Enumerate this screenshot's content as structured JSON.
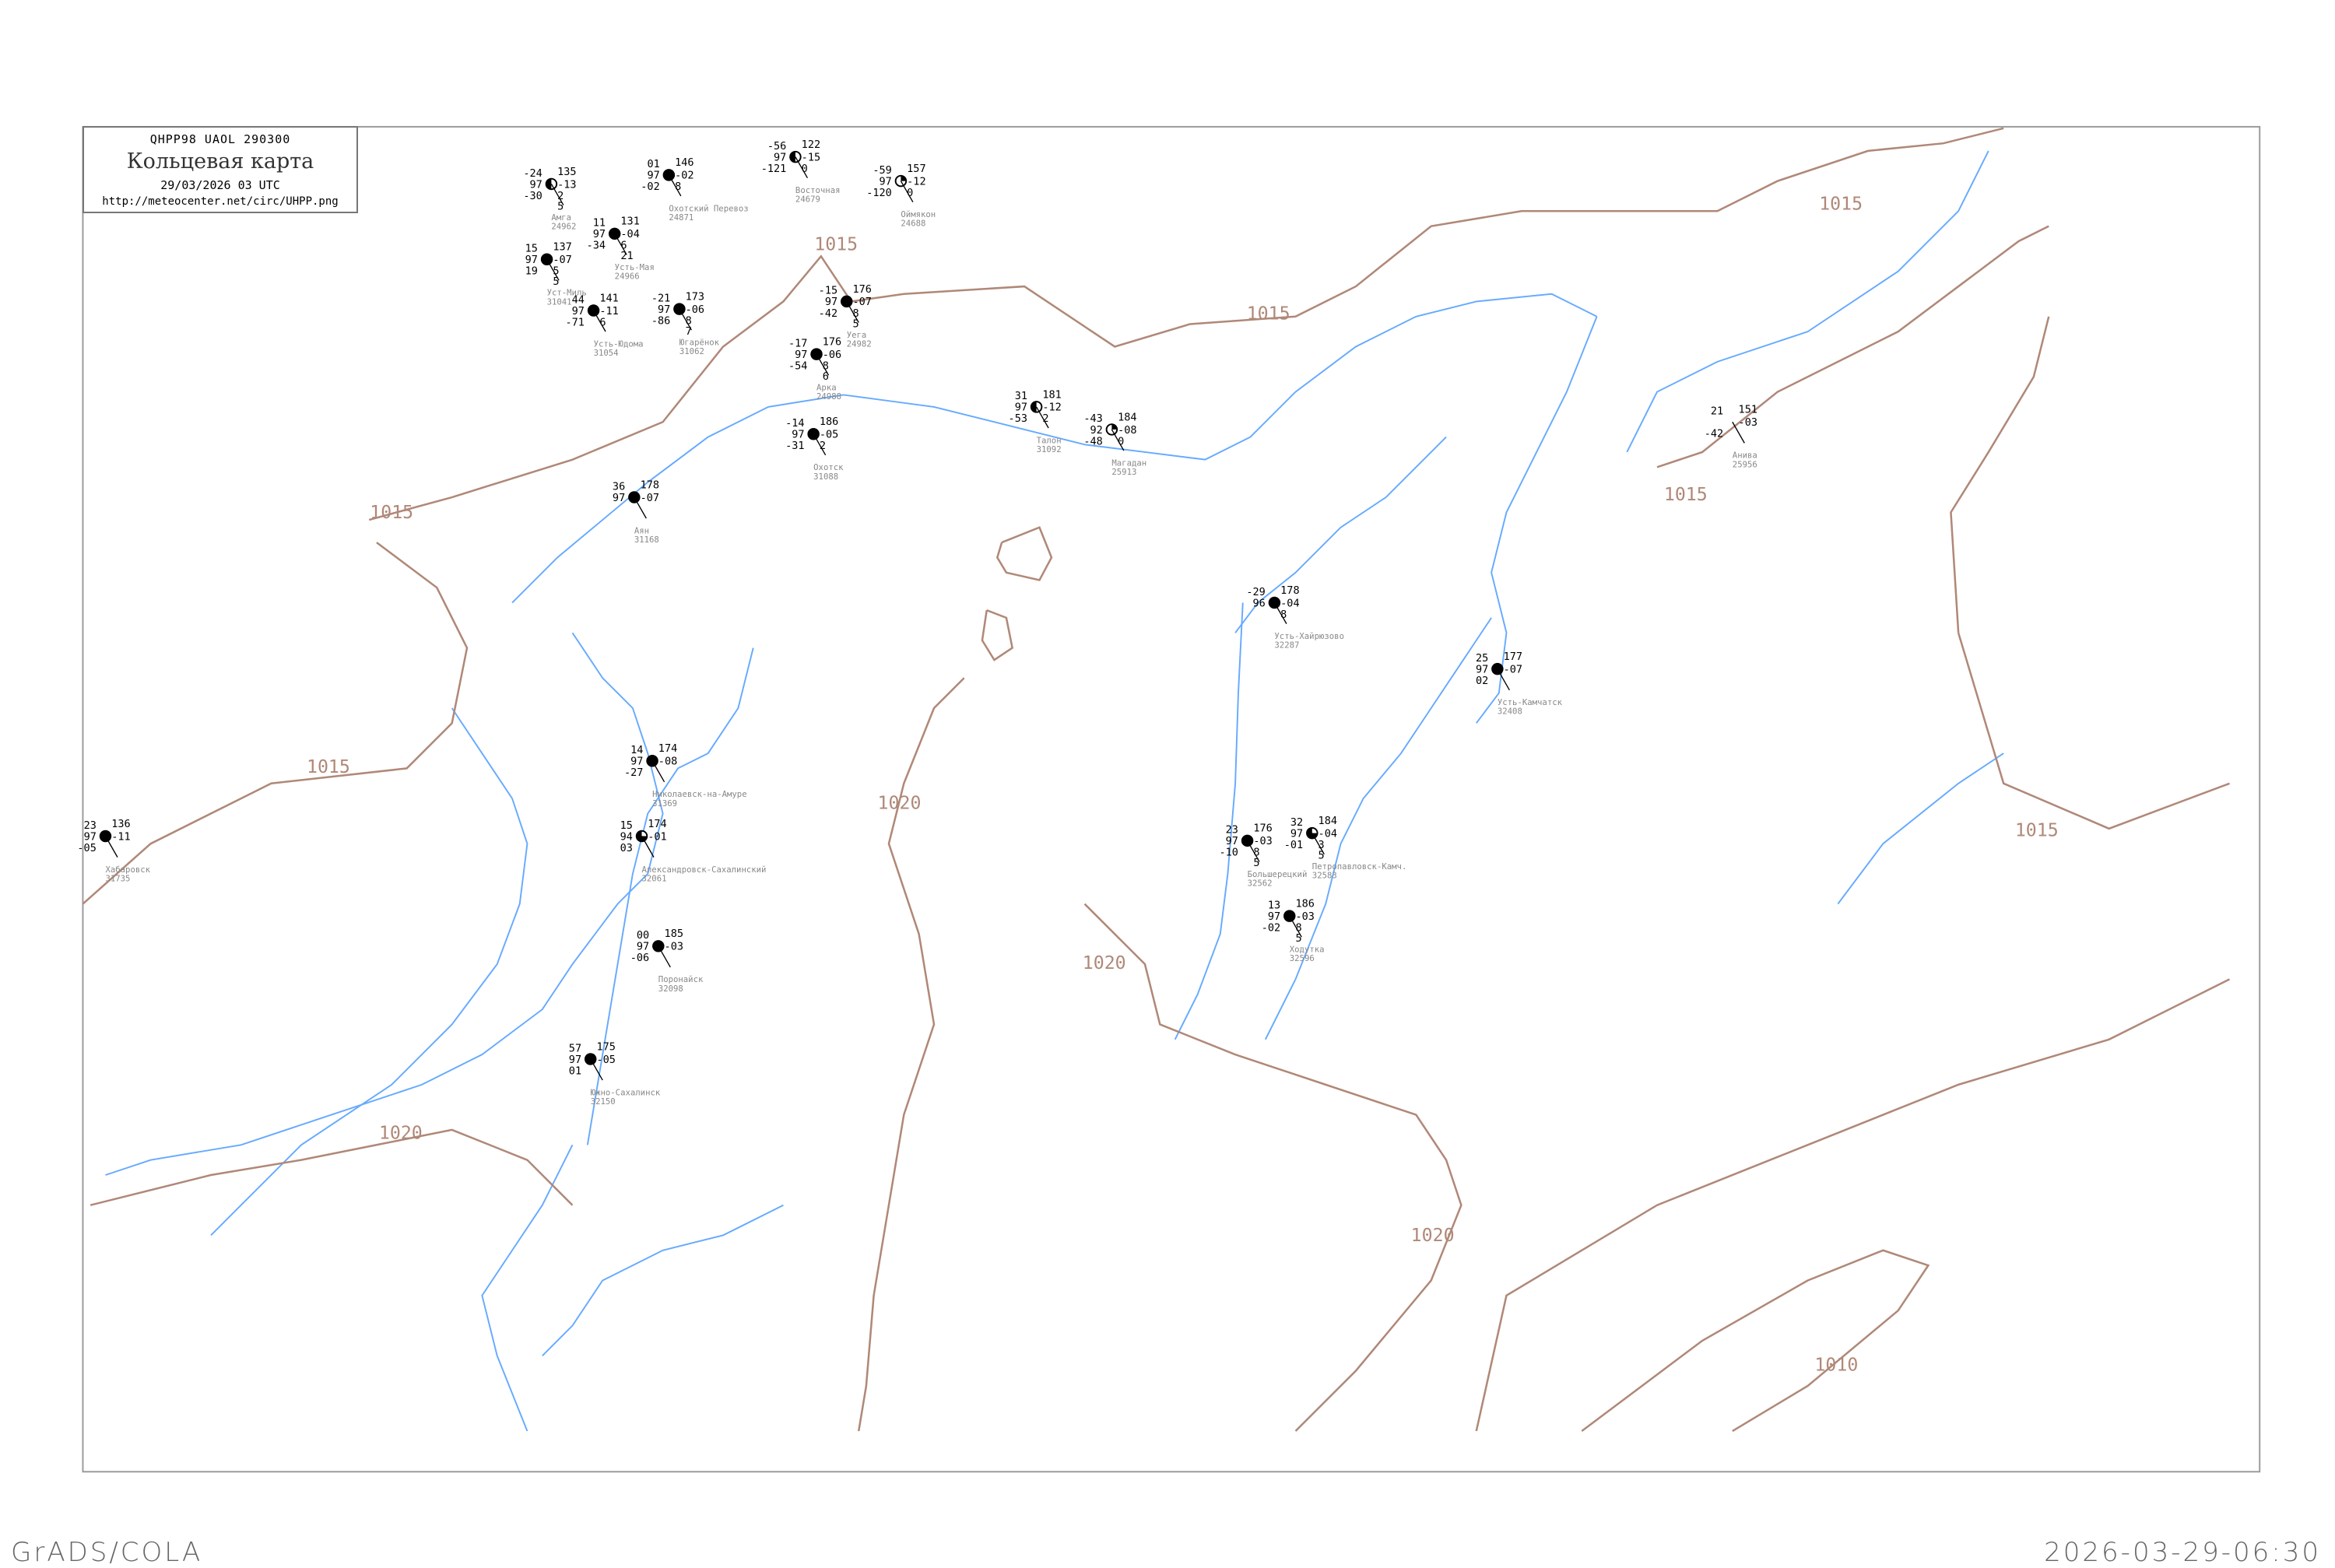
{
  "header": {
    "code_line": "QHPP98  UAOL  290300",
    "title": "Кольцевая карта",
    "datetime": "29/03/2026 03 UTC",
    "url": "http://meteocenter.net/circ/UHPP.png"
  },
  "footer": {
    "left": "GrADS/COLA",
    "right": "2026-03-29-06:30"
  },
  "colors": {
    "isobar": "#b08878",
    "coastline": "#66aaff",
    "station_name": "#888888",
    "frame": "#999999"
  },
  "isobar_labels": [
    "1015",
    "1015",
    "1015",
    "1015",
    "1015",
    "1015",
    "1015",
    "1020",
    "1020",
    "1020",
    "1020",
    "1010"
  ],
  "stations": [
    {
      "name": "Амга",
      "id": "24962",
      "t": "-24",
      "p": "97",
      "td": "-30",
      "ppp": "135",
      "tend": "-13",
      "a": "2",
      "b": "5",
      "cover": "half"
    },
    {
      "name": "Охотский Перевоз",
      "id": "24871",
      "t": "01",
      "p": "97",
      "td": "-02",
      "ppp": "146",
      "tend": "-02",
      "a": "8",
      "b": "",
      "cover": "full"
    },
    {
      "name": "Восточная",
      "id": "24679",
      "t": "-56",
      "p": "97",
      "td": "-121",
      "ppp": "122",
      "tend": "-15",
      "a": "0",
      "b": "",
      "cover": "half"
    },
    {
      "name": "Оймякон",
      "id": "24688",
      "t": "-59",
      "p": "97",
      "td": "-120",
      "ppp": "157",
      "tend": "-12",
      "a": "0",
      "b": "",
      "cover": "quarter"
    },
    {
      "name": "Усть-Мая",
      "id": "24966",
      "t": "11",
      "p": "97",
      "td": "-34",
      "ppp": "131",
      "tend": "-04",
      "a": "6",
      "b": "21",
      "cover": "full"
    },
    {
      "name": "Уст-Миль",
      "id": "31041",
      "t": "15",
      "p": "97",
      "td": "19",
      "ppp": "137",
      "tend": "-07",
      "a": "5",
      "b": "5",
      "cover": "full"
    },
    {
      "name": "Усть-Юдома",
      "id": "31054",
      "t": "44",
      "p": "97",
      "td": "-71",
      "ppp": "141",
      "tend": "-11",
      "a": "6",
      "b": "",
      "cover": "full"
    },
    {
      "name": "Югарёнок",
      "id": "31062",
      "t": "-21",
      "p": "97",
      "td": "-86",
      "ppp": "173",
      "tend": "-06",
      "a": "8",
      "b": "7",
      "cover": "full"
    },
    {
      "name": "Уега",
      "id": "24982",
      "t": "-15",
      "p": "97",
      "td": "-42",
      "ppp": "176",
      "tend": "-07",
      "a": "8",
      "b": "5",
      "cover": "full"
    },
    {
      "name": "Арка",
      "id": "24988",
      "t": "-17",
      "p": "97",
      "td": "-54",
      "ppp": "176",
      "tend": "-06",
      "a": "8",
      "b": "6",
      "cover": "full"
    },
    {
      "name": "Охотск",
      "id": "31088",
      "t": "-14",
      "p": "97",
      "td": "-31",
      "ppp": "186",
      "tend": "-05",
      "a": "2",
      "b": "",
      "cover": "full"
    },
    {
      "name": "Талон",
      "id": "31092",
      "t": "31",
      "p": "97",
      "td": "-53",
      "ppp": "181",
      "tend": "-12",
      "a": "2",
      "b": "",
      "cover": "half"
    },
    {
      "name": "Магадан",
      "id": "25913",
      "t": "-43",
      "p": "92",
      "td": "-48",
      "ppp": "184",
      "tend": "-08",
      "a": "0",
      "b": "",
      "cover": "quarter"
    },
    {
      "name": "Аян",
      "id": "31168",
      "t": "36",
      "p": "97",
      "td": "",
      "ppp": "178",
      "tend": "-07",
      "a": "",
      "b": "",
      "cover": "full"
    },
    {
      "name": "Усть-Хайрюзово",
      "id": "32287",
      "t": "-29",
      "p": "96",
      "td": "",
      "ppp": "178",
      "tend": "-04",
      "a": "8",
      "b": "",
      "cover": "full"
    },
    {
      "name": "Усть-Камчатск",
      "id": "32408",
      "t": "25",
      "p": "97",
      "td": "02",
      "ppp": "177",
      "tend": "-07",
      "a": "",
      "b": "",
      "cover": "full"
    },
    {
      "name": "Большерецкий",
      "id": "32562",
      "t": "23",
      "p": "97",
      "td": "-10",
      "ppp": "176",
      "tend": "-03",
      "a": "8",
      "b": "5",
      "cover": "full"
    },
    {
      "name": "Петропавловск-Камч.",
      "id": "32583",
      "t": "32",
      "p": "97",
      "td": "-01",
      "ppp": "184",
      "tend": "-04",
      "a": "3",
      "b": "5",
      "cover": "threequarter"
    },
    {
      "name": "Ходутка",
      "id": "32596",
      "t": "13",
      "p": "97",
      "td": "-02",
      "ppp": "186",
      "tend": "-03",
      "a": "8",
      "b": "5",
      "cover": "full"
    },
    {
      "name": "Николаевск-на-Амуре",
      "id": "31369",
      "t": "14",
      "p": "97",
      "td": "-27",
      "ppp": "174",
      "tend": "-08",
      "a": "",
      "b": "",
      "cover": "full"
    },
    {
      "name": "Александровск-Сахалинский",
      "id": "32061",
      "t": "15",
      "p": "94",
      "td": "03",
      "ppp": "174",
      "tend": "-01",
      "a": "",
      "b": "",
      "cover": "threequarter"
    },
    {
      "name": "Поронайск",
      "id": "32098",
      "t": "00",
      "p": "97",
      "td": "-06",
      "ppp": "185",
      "tend": "-03",
      "a": "",
      "b": "",
      "cover": "full"
    },
    {
      "name": "Южно-Сахалинск",
      "id": "32150",
      "t": "57",
      "p": "97",
      "td": "01",
      "ppp": "175",
      "tend": "-05",
      "a": "",
      "b": "",
      "cover": "full"
    },
    {
      "name": "Хабаровск",
      "id": "31735",
      "t": "23",
      "p": "97",
      "td": "-05",
      "ppp": "136",
      "tend": "-11",
      "a": "",
      "b": "",
      "cover": "full"
    },
    {
      "name": "Анива",
      "id": "25956",
      "t": "21",
      "p": "",
      "td": "-42",
      "ppp": "151",
      "tend": "-03",
      "a": "",
      "b": "",
      "cover": "none"
    }
  ]
}
